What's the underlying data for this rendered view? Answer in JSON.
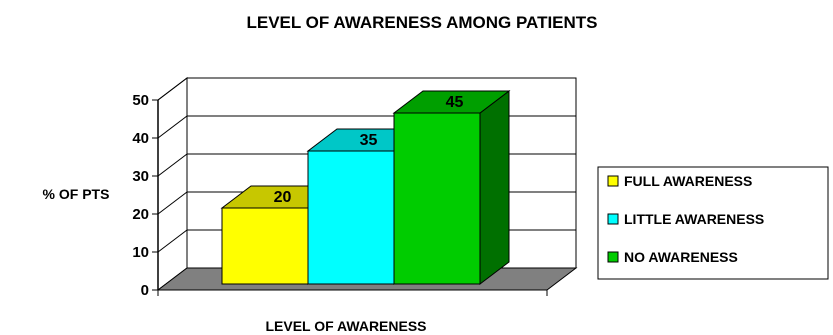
{
  "chart_data": {
    "type": "bar",
    "title": "LEVEL OF AWARENESS AMONG PATIENTS",
    "xlabel": "LEVEL OF AWARENESS",
    "ylabel": "% OF PTS",
    "ylim": [
      0,
      50
    ],
    "yticks": [
      "0",
      "10",
      "20",
      "30",
      "40",
      "50"
    ],
    "grid": true,
    "legend_position": "right",
    "series": [
      {
        "name": "FULL AWARENESS",
        "value": 20,
        "label": "20",
        "color": "#ffff00"
      },
      {
        "name": "LITTLE AWARENESS",
        "value": 35,
        "label": "35",
        "color": "#00ffff"
      },
      {
        "name": "NO AWARENESS",
        "value": 45,
        "label": "45",
        "color": "#00cc00"
      }
    ],
    "colors": {
      "floor": "#808080",
      "wall": "#ffffff"
    }
  }
}
